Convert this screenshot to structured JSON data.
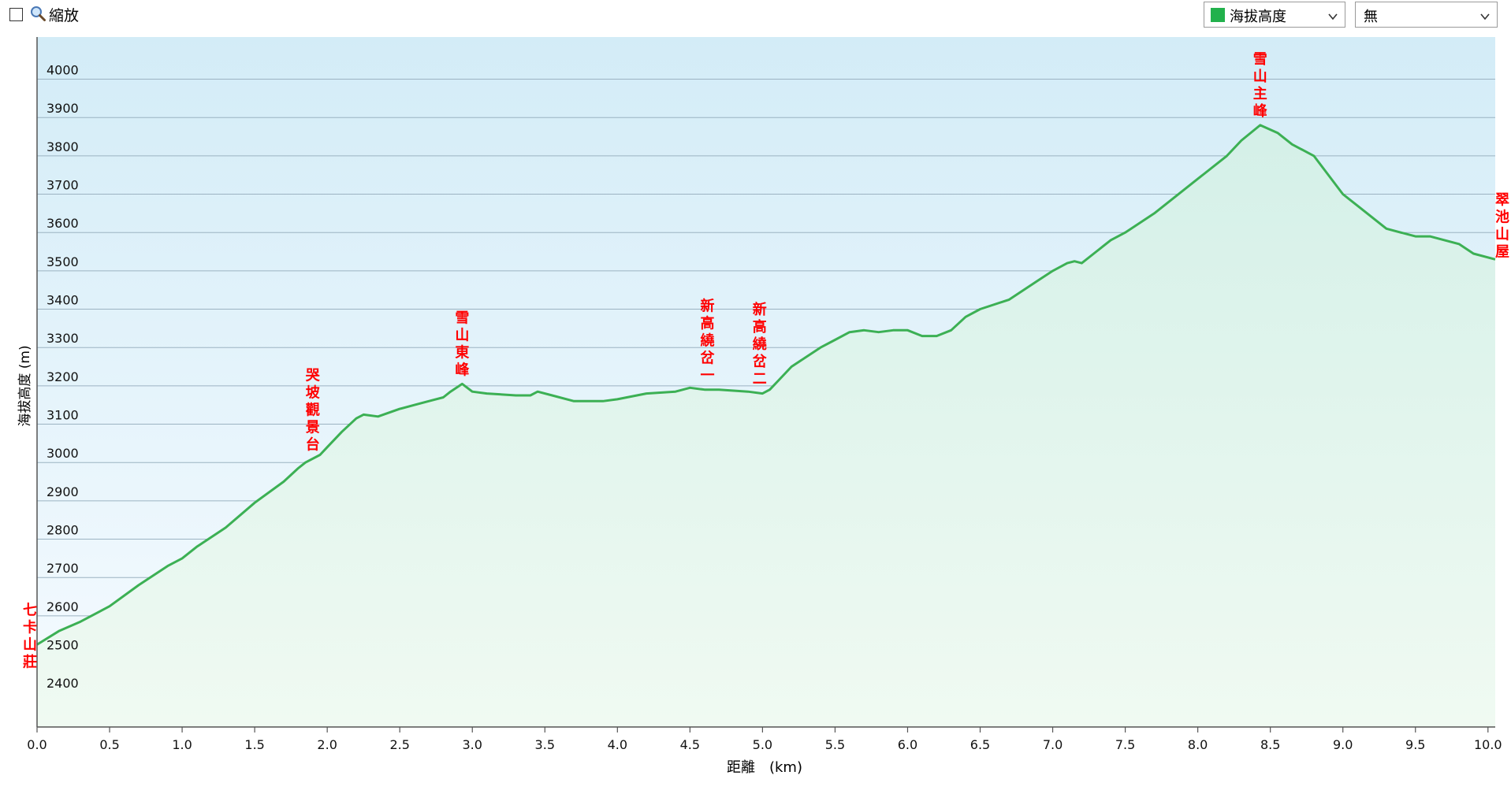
{
  "toolbar": {
    "zoom_label": "縮放",
    "zoom_checked": false,
    "series_select_value": "海拔高度",
    "series_color": "#22b14c",
    "compare_select_value": "無"
  },
  "chart_data": {
    "type": "area",
    "title": "",
    "xlabel": "距離　(km)",
    "ylabel": "海拔高度 (m)",
    "xlim": [
      0.0,
      10.05
    ],
    "ylim": [
      2310,
      4110
    ],
    "grid": true,
    "xticks": [
      0.0,
      0.5,
      1.0,
      1.5,
      2.0,
      2.5,
      3.0,
      3.5,
      4.0,
      4.5,
      5.0,
      5.5,
      6.0,
      6.5,
      7.0,
      7.5,
      8.0,
      8.5,
      9.0,
      9.5,
      10.0
    ],
    "xtick_labels": [
      "0.0",
      "0.5",
      "1.0",
      "1.5",
      "2.0",
      "2.5",
      "3.0",
      "3.5",
      "4.0",
      "4.5",
      "5.0",
      "5.5",
      "6.0",
      "6.5",
      "7.0",
      "7.5",
      "8.0",
      "8.5",
      "9.0",
      "9.5",
      "10.0"
    ],
    "yticks": [
      2400,
      2500,
      2600,
      2700,
      2800,
      2900,
      3000,
      3100,
      3200,
      3300,
      3400,
      3500,
      3600,
      3700,
      3800,
      3900,
      4000
    ],
    "ytick_labels": [
      "2400",
      "2500",
      "2600",
      "2700",
      "2800",
      "2900",
      "3000",
      "3100",
      "3200",
      "3300",
      "3400",
      "3500",
      "3600",
      "3700",
      "3800",
      "3900",
      "4000"
    ],
    "line_color": "#3cb054",
    "annotation_color": "#ff0000",
    "series": [
      {
        "x": [
          0.0,
          0.15,
          0.3,
          0.5,
          0.7,
          0.9,
          1.0,
          1.1,
          1.3,
          1.5,
          1.7,
          1.8,
          1.85,
          1.95,
          2.0,
          2.1,
          2.2,
          2.25,
          2.35,
          2.5,
          2.6,
          2.7,
          2.8,
          2.85,
          2.93,
          3.0,
          3.1,
          3.3,
          3.4,
          3.45,
          3.55,
          3.7,
          3.9,
          4.0,
          4.2,
          4.4,
          4.5,
          4.6,
          4.7,
          4.9,
          5.0,
          5.05,
          5.1,
          5.2,
          5.3,
          5.4,
          5.5,
          5.6,
          5.7,
          5.8,
          5.9,
          6.0,
          6.1,
          6.2,
          6.3,
          6.4,
          6.5,
          6.7,
          6.9,
          7.0,
          7.1,
          7.15,
          7.2,
          7.3,
          7.4,
          7.5,
          7.7,
          7.9,
          8.0,
          8.2,
          8.3,
          8.43,
          8.55,
          8.65,
          8.8,
          9.0,
          9.1,
          9.2,
          9.3,
          9.5,
          9.6,
          9.8,
          9.9,
          10.05
        ],
        "y": [
          2525,
          2560,
          2585,
          2625,
          2680,
          2730,
          2750,
          2780,
          2830,
          2895,
          2950,
          2985,
          3000,
          3020,
          3040,
          3080,
          3115,
          3125,
          3120,
          3140,
          3150,
          3160,
          3170,
          3185,
          3205,
          3185,
          3180,
          3175,
          3175,
          3185,
          3175,
          3160,
          3160,
          3165,
          3180,
          3185,
          3195,
          3190,
          3190,
          3185,
          3180,
          3190,
          3210,
          3250,
          3275,
          3300,
          3320,
          3340,
          3345,
          3340,
          3345,
          3345,
          3330,
          3330,
          3345,
          3380,
          3400,
          3425,
          3475,
          3500,
          3520,
          3525,
          3520,
          3550,
          3580,
          3600,
          3650,
          3710,
          3740,
          3800,
          3840,
          3880,
          3860,
          3830,
          3800,
          3700,
          3670,
          3640,
          3610,
          3590,
          3590,
          3570,
          3545,
          3530
        ]
      }
    ],
    "annotations": [
      {
        "text": "七卡山莊",
        "x": 0.0
      },
      {
        "text": "哭坡觀景台",
        "x": 1.9
      },
      {
        "text": "雪山東峰",
        "x": 2.93
      },
      {
        "text": "新高繞岔一",
        "x": 4.62
      },
      {
        "text": "新高繞岔二",
        "x": 4.98
      },
      {
        "text": "雪山主峰",
        "x": 8.43
      },
      {
        "text": "翠池山屋",
        "x": 10.05
      }
    ]
  }
}
